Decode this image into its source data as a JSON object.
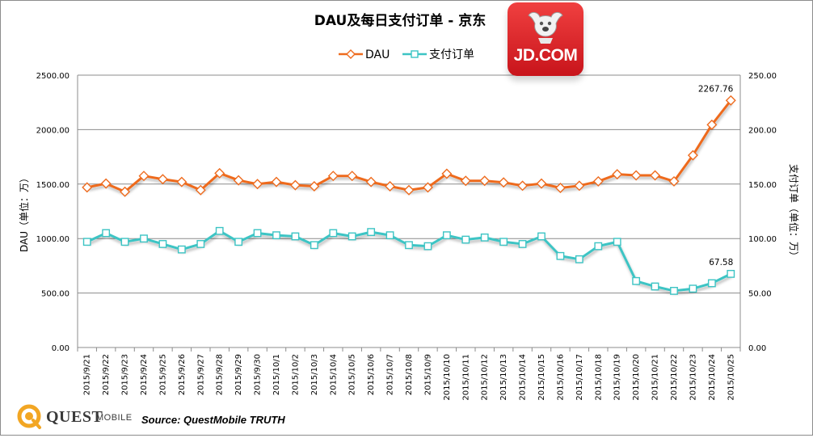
{
  "chart_data": {
    "type": "line",
    "title": "DAU及每日支付订单 - 京东",
    "categories": [
      "2015/9/21",
      "2015/9/22",
      "2015/9/23",
      "2015/9/24",
      "2015/9/25",
      "2015/9/26",
      "2015/9/27",
      "2015/9/28",
      "2015/9/29",
      "2015/9/30",
      "2015/10/1",
      "2015/10/2",
      "2015/10/3",
      "2015/10/4",
      "2015/10/5",
      "2015/10/6",
      "2015/10/7",
      "2015/10/8",
      "2015/10/9",
      "2015/10/10",
      "2015/10/11",
      "2015/10/12",
      "2015/10/13",
      "2015/10/14",
      "2015/10/15",
      "2015/10/16",
      "2015/10/17",
      "2015/10/18",
      "2015/10/19",
      "2015/10/20",
      "2015/10/21",
      "2015/10/22",
      "2015/10/23",
      "2015/10/24",
      "2015/10/25"
    ],
    "series": [
      {
        "name": "DAU",
        "axis": "left",
        "color": "#ee6b1e",
        "marker": "diamond",
        "values": [
          1470,
          1505,
          1430,
          1575,
          1545,
          1520,
          1445,
          1600,
          1535,
          1500,
          1520,
          1490,
          1480,
          1575,
          1575,
          1520,
          1480,
          1445,
          1470,
          1595,
          1530,
          1530,
          1515,
          1485,
          1505,
          1465,
          1485,
          1525,
          1590,
          1580,
          1580,
          1525,
          1765,
          2045,
          2267.76
        ]
      },
      {
        "name": "支付订单",
        "axis": "right",
        "color": "#3cc4c4",
        "marker": "square",
        "values": [
          97,
          105,
          97,
          100,
          95,
          90,
          95,
          107,
          97,
          105,
          103,
          102,
          94,
          105,
          102,
          106,
          103,
          94,
          93,
          103,
          99,
          101,
          97,
          95,
          102,
          84,
          81,
          93,
          97,
          61,
          56,
          52,
          54,
          59,
          67.58
        ]
      }
    ],
    "ylabel": "DAU（单位：万）",
    "y2label": "支付订单（单位：万）",
    "ylim": [
      0,
      2500
    ],
    "y2lim": [
      0,
      250
    ],
    "yticks": [
      "0.00",
      "500.00",
      "1000.00",
      "1500.00",
      "2000.00",
      "2500.00"
    ],
    "y2ticks": [
      "0.00",
      "50.00",
      "100.00",
      "150.00",
      "200.00",
      "250.00"
    ],
    "annotations": [
      {
        "series": 0,
        "index": 34,
        "text": "2267.76"
      },
      {
        "series": 1,
        "index": 34,
        "text": "67.58"
      }
    ],
    "grid": true,
    "legend": "top"
  },
  "brand": {
    "logo_text": "JD.COM",
    "watermark_quest": "QUEST",
    "watermark_mobile": "MOBILE",
    "source": "Source: QuestMobile TRUTH"
  }
}
